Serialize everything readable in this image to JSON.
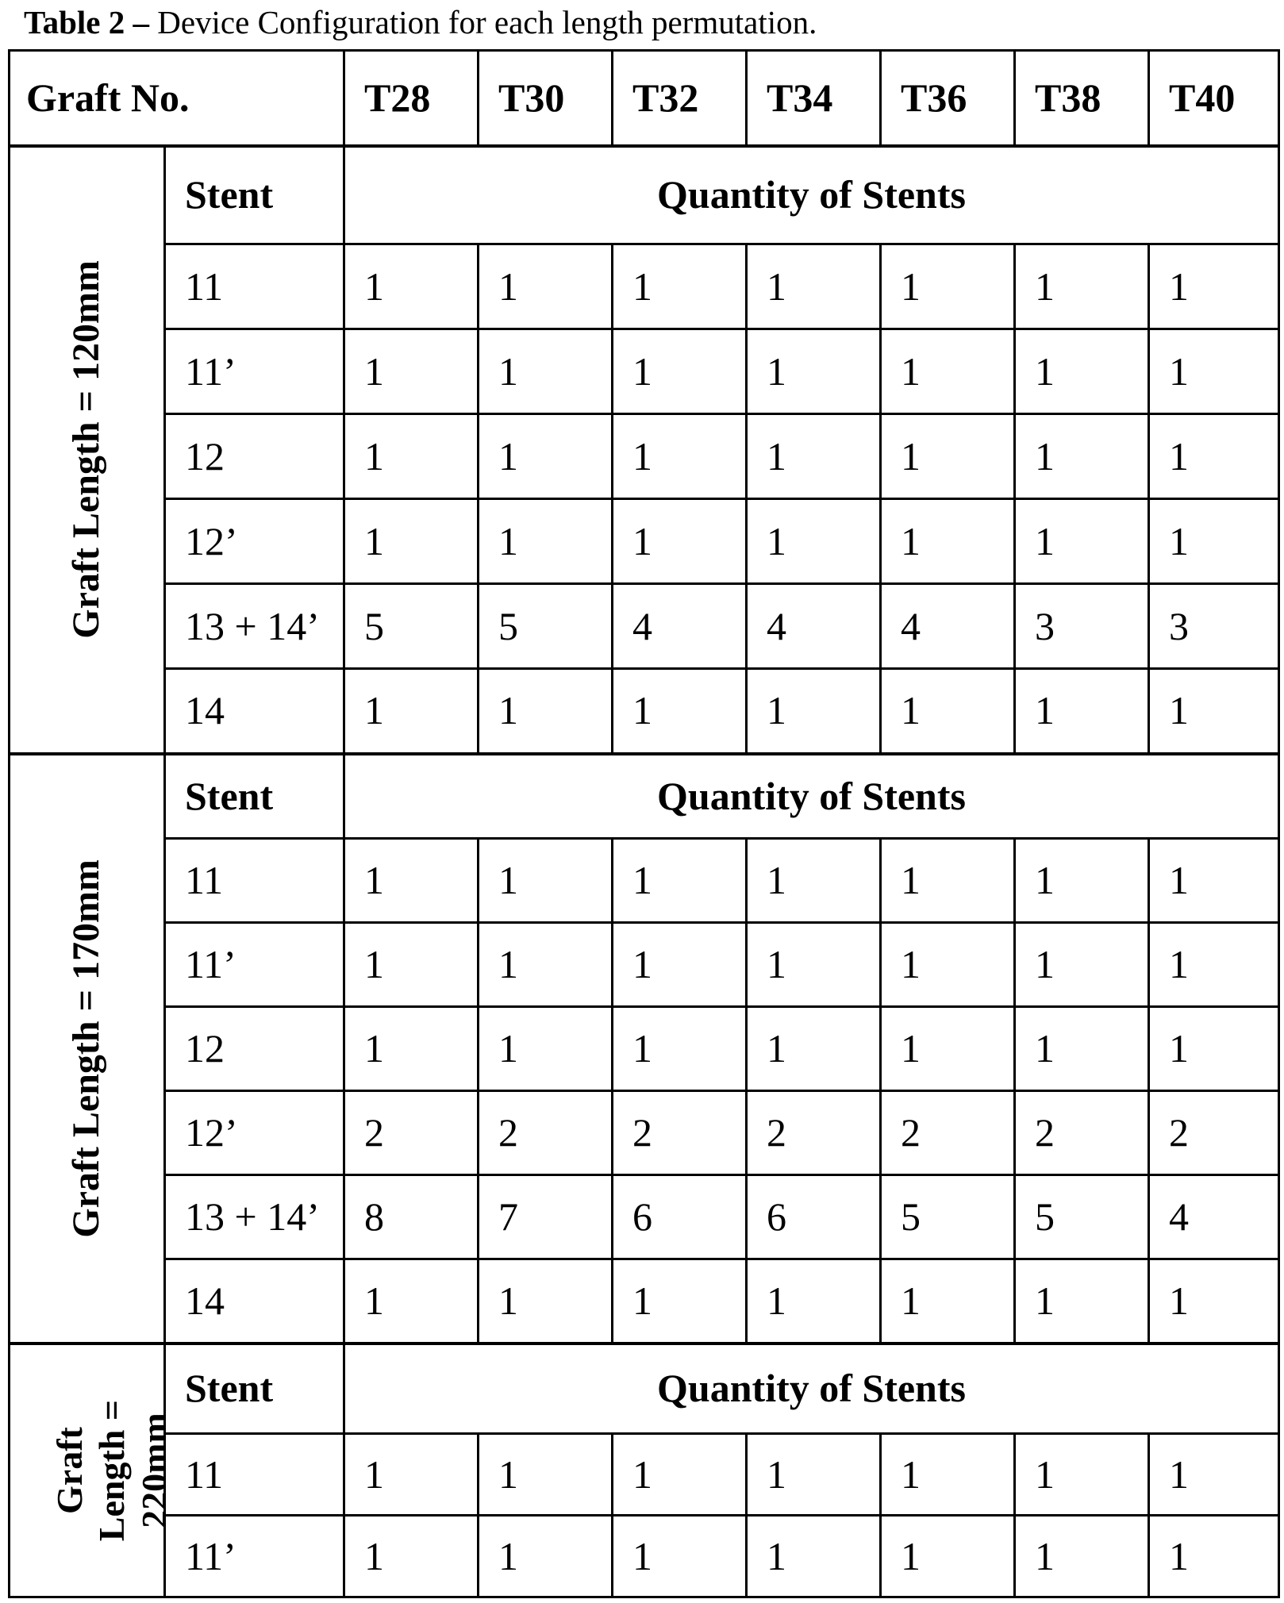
{
  "page": {
    "background_color": "#ffffff",
    "text_color": "#000000",
    "border_color": "#000000"
  },
  "title": {
    "label_bold": "Table 2 –",
    "label_rest": " Device Configuration for each length permutation."
  },
  "table": {
    "corner_header": "Graft No.",
    "graft_no_columns": [
      "T28",
      "T30",
      "T32",
      "T34",
      "T36",
      "T38",
      "T40"
    ],
    "stent_header": "Stent",
    "quantity_header": "Quantity of Stents",
    "sections": [
      {
        "label": "Graft Length = 120mm",
        "rows": [
          {
            "stent": "11",
            "quantities": [
              "1",
              "1",
              "1",
              "1",
              "1",
              "1",
              "1"
            ]
          },
          {
            "stent": "11’",
            "quantities": [
              "1",
              "1",
              "1",
              "1",
              "1",
              "1",
              "1"
            ]
          },
          {
            "stent": "12",
            "quantities": [
              "1",
              "1",
              "1",
              "1",
              "1",
              "1",
              "1"
            ]
          },
          {
            "stent": "12’",
            "quantities": [
              "1",
              "1",
              "1",
              "1",
              "1",
              "1",
              "1"
            ]
          },
          {
            "stent": "13 + 14’",
            "quantities": [
              "5",
              "5",
              "4",
              "4",
              "4",
              "3",
              "3"
            ]
          },
          {
            "stent": "14",
            "quantities": [
              "1",
              "1",
              "1",
              "1",
              "1",
              "1",
              "1"
            ]
          }
        ]
      },
      {
        "label": "Graft Length = 170mm",
        "rows": [
          {
            "stent": "11",
            "quantities": [
              "1",
              "1",
              "1",
              "1",
              "1",
              "1",
              "1"
            ]
          },
          {
            "stent": "11’",
            "quantities": [
              "1",
              "1",
              "1",
              "1",
              "1",
              "1",
              "1"
            ]
          },
          {
            "stent": "12",
            "quantities": [
              "1",
              "1",
              "1",
              "1",
              "1",
              "1",
              "1"
            ]
          },
          {
            "stent": "12’",
            "quantities": [
              "2",
              "2",
              "2",
              "2",
              "2",
              "2",
              "2"
            ]
          },
          {
            "stent": "13 + 14’",
            "quantities": [
              "8",
              "7",
              "6",
              "6",
              "5",
              "5",
              "4"
            ]
          },
          {
            "stent": "14",
            "quantities": [
              "1",
              "1",
              "1",
              "1",
              "1",
              "1",
              "1"
            ]
          }
        ]
      },
      {
        "label": "Graft Length = 220mm",
        "label_lines": "Graft\nLength =\n220mm",
        "clipped_at_bottom": true,
        "rows": [
          {
            "stent": "11",
            "quantities": [
              "1",
              "1",
              "1",
              "1",
              "1",
              "1",
              "1"
            ]
          },
          {
            "stent": "11’",
            "quantities": [
              "1",
              "1",
              "1",
              "1",
              "1",
              "1",
              "1"
            ]
          }
        ]
      }
    ]
  }
}
